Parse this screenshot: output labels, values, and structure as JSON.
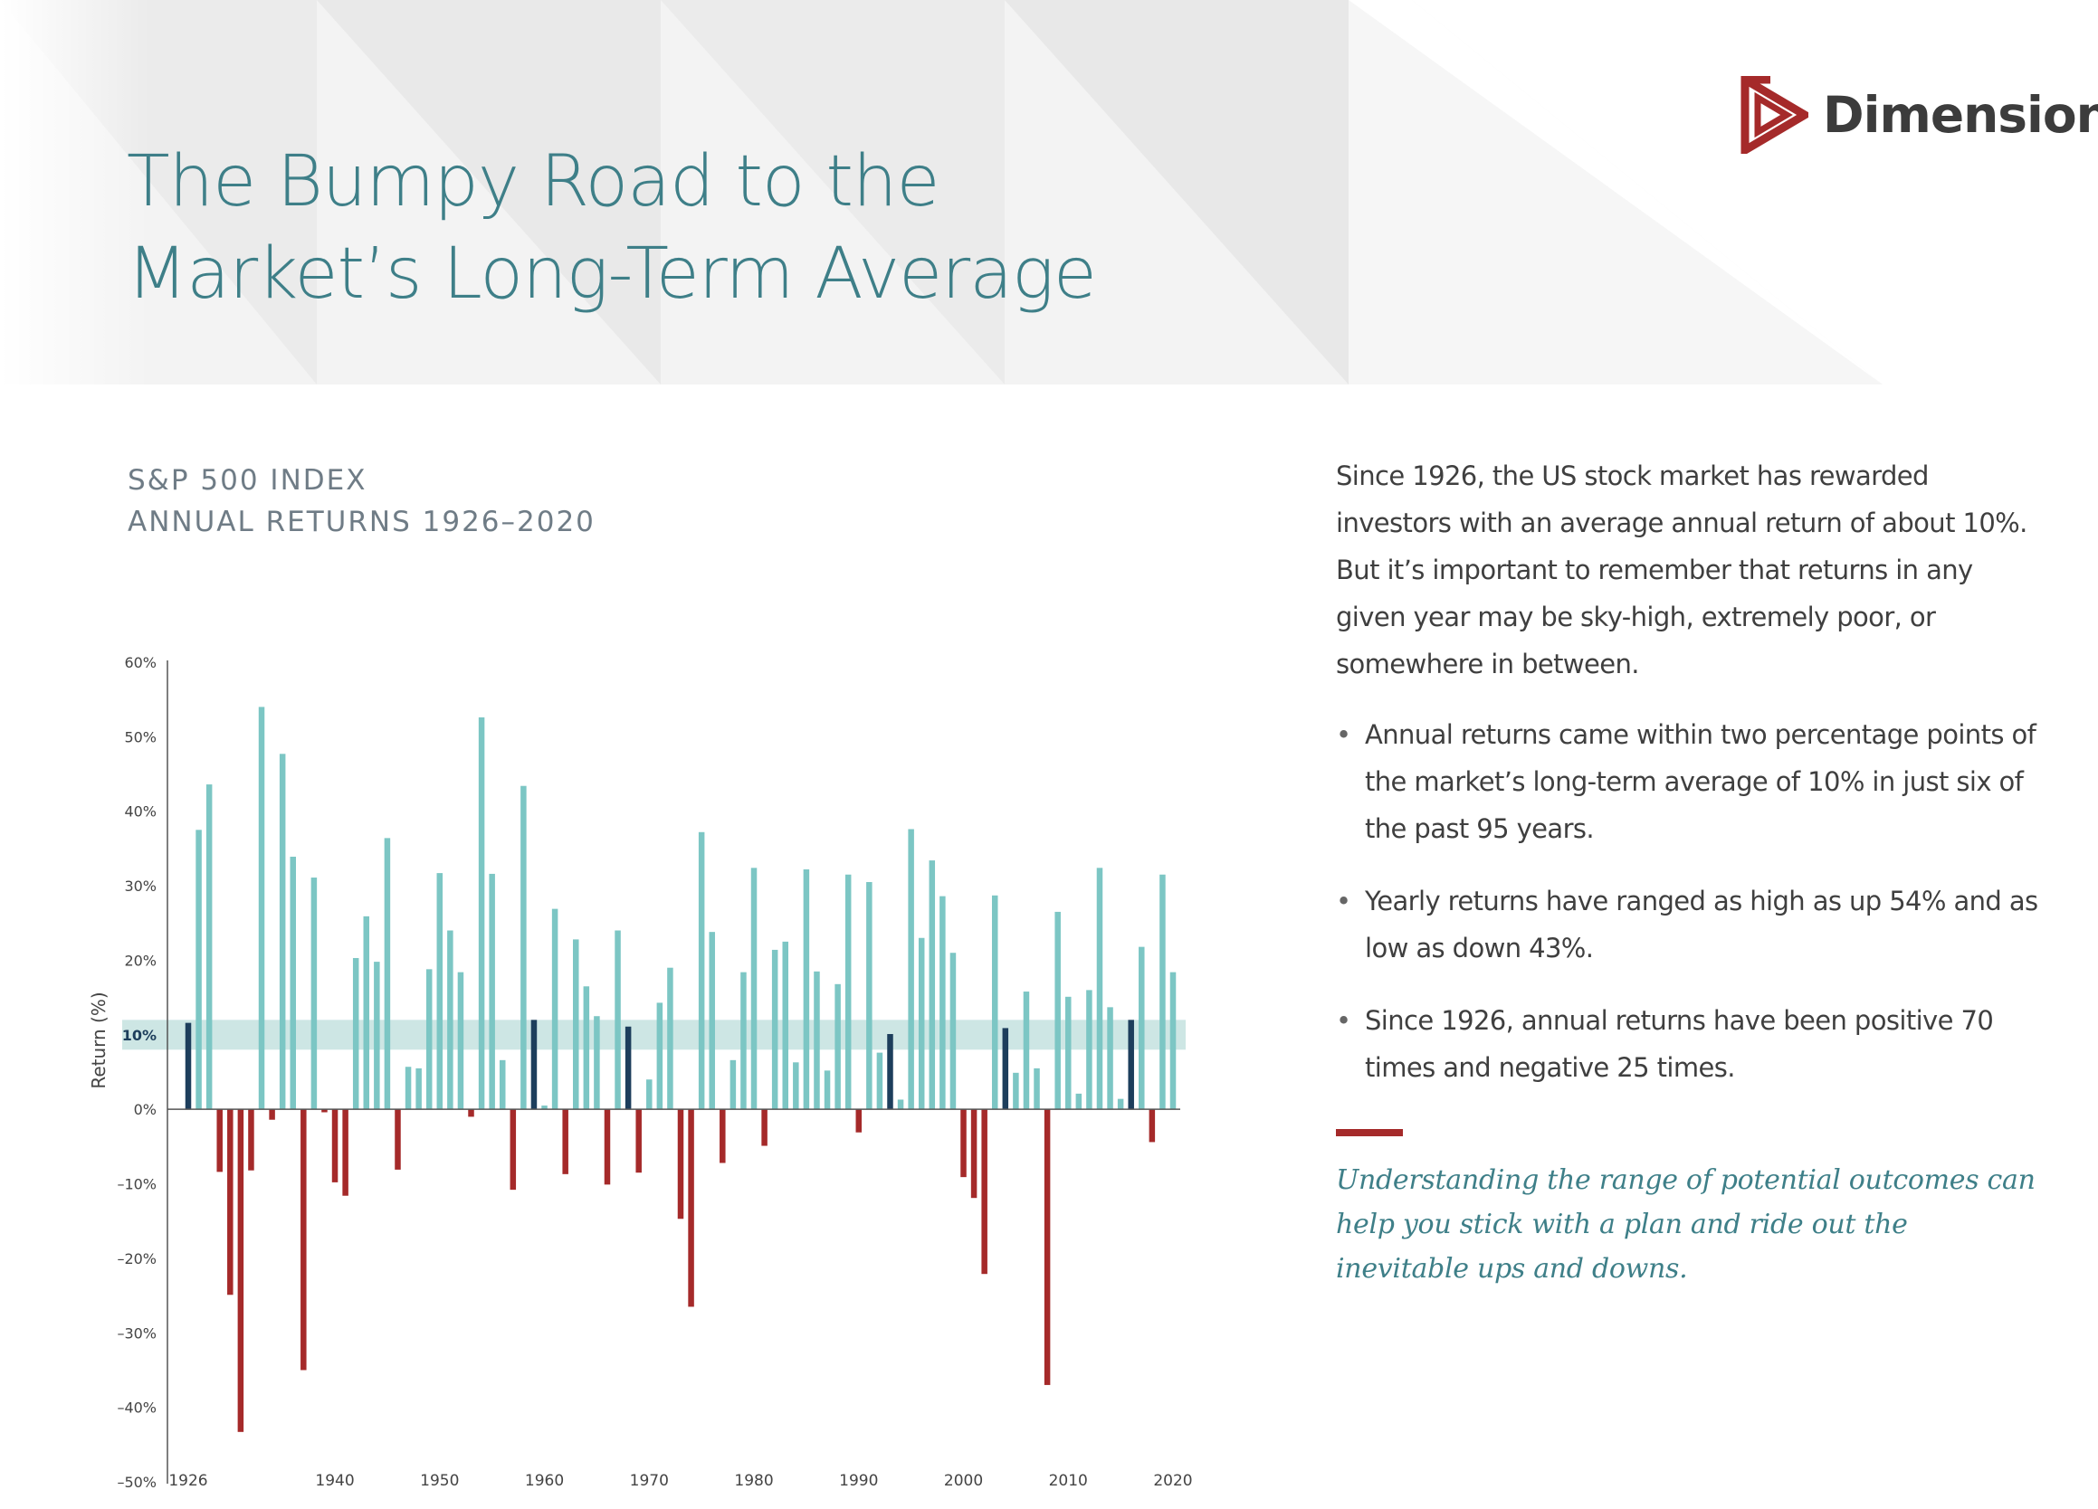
{
  "header": {
    "title_line1": "The Bumpy Road to the",
    "title_line2": "Market’s Long-Term Average"
  },
  "brand": {
    "name": "Dimensional",
    "logo_icon": "dimensional-triangle-logo",
    "logo_color": "#a52a2a",
    "text_color": "#3c3c3c"
  },
  "chart_title": {
    "line1": "S&P 500 INDEX",
    "line2": "ANNUAL RETURNS 1926–2020"
  },
  "colors": {
    "positive": "#7cc6c4",
    "negative": "#a52a2a",
    "near_average": "#1d3e5c",
    "band": "#cde6e4",
    "accent": "#3e7f88"
  },
  "chart_data": {
    "type": "bar",
    "title": "",
    "xlabel": "",
    "ylabel": "Return (%)",
    "ylim": [
      -50,
      60
    ],
    "y_ticks": [
      60,
      50,
      40,
      30,
      20,
      10,
      0,
      -10,
      -20,
      -30,
      -40,
      -50
    ],
    "y_tick_labels": [
      "60%",
      "50%",
      "40%",
      "30%",
      "20%",
      "10%",
      "0%",
      "–10%",
      "–20%",
      "–30%",
      "–40%",
      "–50%"
    ],
    "highlight_tick": "10%",
    "average_band": [
      8,
      12
    ],
    "x_tick_labels": [
      "1926",
      "1940",
      "1950",
      "1960",
      "1970",
      "1980",
      "1990",
      "2000",
      "2010",
      "2020"
    ],
    "x_tick_years": [
      1926,
      1940,
      1950,
      1960,
      1970,
      1980,
      1990,
      2000,
      2010,
      2020
    ],
    "grid": false,
    "categories": [
      1926,
      1927,
      1928,
      1929,
      1930,
      1931,
      1932,
      1933,
      1934,
      1935,
      1936,
      1937,
      1938,
      1939,
      1940,
      1941,
      1942,
      1943,
      1944,
      1945,
      1946,
      1947,
      1948,
      1949,
      1950,
      1951,
      1952,
      1953,
      1954,
      1955,
      1956,
      1957,
      1958,
      1959,
      1960,
      1961,
      1962,
      1963,
      1964,
      1965,
      1966,
      1967,
      1968,
      1969,
      1970,
      1971,
      1972,
      1973,
      1974,
      1975,
      1976,
      1977,
      1978,
      1979,
      1980,
      1981,
      1982,
      1983,
      1984,
      1985,
      1986,
      1987,
      1988,
      1989,
      1990,
      1991,
      1992,
      1993,
      1994,
      1995,
      1996,
      1997,
      1998,
      1999,
      2000,
      2001,
      2002,
      2003,
      2004,
      2005,
      2006,
      2007,
      2008,
      2009,
      2010,
      2011,
      2012,
      2013,
      2014,
      2015,
      2016,
      2017,
      2018,
      2019,
      2020
    ],
    "values": [
      11.6,
      37.5,
      43.6,
      -8.4,
      -24.9,
      -43.3,
      -8.2,
      54.0,
      -1.4,
      47.7,
      33.9,
      -35.0,
      31.1,
      -0.4,
      -9.8,
      -11.6,
      20.3,
      25.9,
      19.8,
      36.4,
      -8.1,
      5.7,
      5.5,
      18.8,
      31.7,
      24.0,
      18.4,
      -1.0,
      52.6,
      31.6,
      6.6,
      -10.8,
      43.4,
      12.0,
      0.5,
      26.9,
      -8.7,
      22.8,
      16.5,
      12.5,
      -10.1,
      24.0,
      11.1,
      -8.5,
      4.0,
      14.3,
      19.0,
      -14.7,
      -26.5,
      37.2,
      23.8,
      -7.2,
      6.6,
      18.4,
      32.4,
      -4.9,
      21.4,
      22.5,
      6.3,
      32.2,
      18.5,
      5.2,
      16.8,
      31.5,
      -3.1,
      30.5,
      7.6,
      10.1,
      1.3,
      37.6,
      23.0,
      33.4,
      28.6,
      21.0,
      -9.1,
      -11.9,
      -22.1,
      28.7,
      10.9,
      4.9,
      15.8,
      5.5,
      -37.0,
      26.5,
      15.1,
      2.1,
      16.0,
      32.4,
      13.7,
      1.4,
      12.0,
      21.8,
      -4.4,
      31.5,
      18.4
    ]
  },
  "panel": {
    "intro": "Since 1926, the US stock market has rewarded investors with an average annual return of about 10%. But it’s important to remember that returns in any given year may be sky-high, extremely poor, or somewhere in between.",
    "bullet_symbol": "•",
    "bullets": [
      "Annual returns came within two percentage points of the market’s long-term average of 10% in just six of the past 95 years.",
      "Yearly returns have ranged as high as up 54% and as low as down 43%.",
      "Since 1926, annual returns have been positive 70 times and negative 25 times."
    ],
    "quote": "Understanding the range of potential outcomes can help you stick with a plan and ride out the inevitable ups and downs."
  }
}
